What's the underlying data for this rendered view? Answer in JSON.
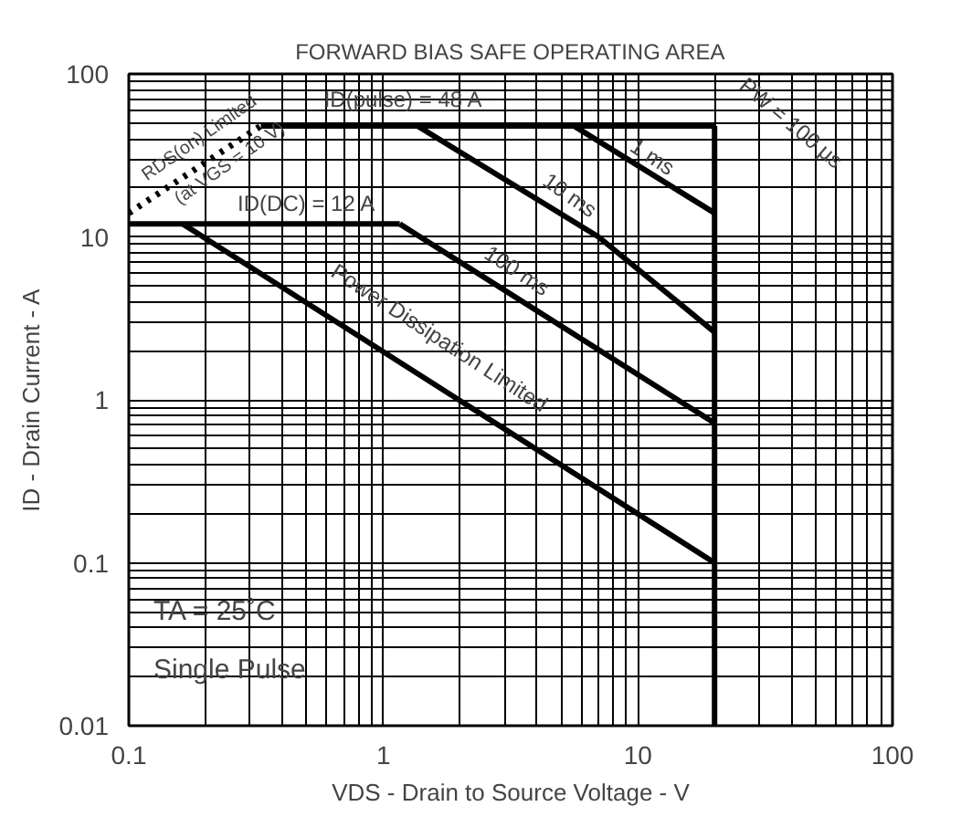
{
  "chart_data": {
    "type": "line",
    "title": "FORWARD BIAS SAFE OPERATING AREA",
    "xlabel": "VDS - Drain to Source Voltage - V",
    "ylabel": "ID - Drain Current - A",
    "log": "xy",
    "xlim": [
      0.1,
      100
    ],
    "ylim": [
      0.01,
      100
    ],
    "xticks": [
      0.1,
      1,
      10,
      100
    ],
    "yticks": [
      0.01,
      0.1,
      1,
      10,
      100
    ],
    "grid": true,
    "marker": "none",
    "series": [
      {
        "x": [
          0.1,
          0.33
        ],
        "values": [
          14,
          48
        ],
        "color": "#000000",
        "line_style": "dotted"
      },
      {
        "x": [
          0.33,
          20
        ],
        "values": [
          48,
          48
        ],
        "color": "#000000"
      },
      {
        "x": [
          20,
          20
        ],
        "values": [
          48,
          0.01
        ],
        "color": "#000000"
      },
      {
        "x": [
          5.6,
          20
        ],
        "values": [
          48,
          14
        ],
        "color": "#000000"
      },
      {
        "x": [
          1.36,
          7,
          20
        ],
        "values": [
          48,
          10,
          2.6
        ],
        "color": "#000000"
      },
      {
        "x": [
          0.1,
          1.16
        ],
        "values": [
          12,
          12
        ],
        "color": "#000000"
      },
      {
        "x": [
          1.16,
          20
        ],
        "values": [
          12,
          0.72
        ],
        "color": "#000000"
      },
      {
        "x": [
          0.163,
          20
        ],
        "values": [
          12,
          0.1
        ],
        "color": "#000000"
      }
    ],
    "annotations": [
      "RDS(on) Limited",
      "(at VGS = 10 V)",
      "ID(pulse) = 48 A",
      "PW = 100 µs",
      "1 ms",
      "10 ms",
      "ID(DC) = 12 A",
      "100 ms",
      "Power Dissipation Limited",
      "TA = 25˚C",
      "Single Pulse"
    ]
  }
}
